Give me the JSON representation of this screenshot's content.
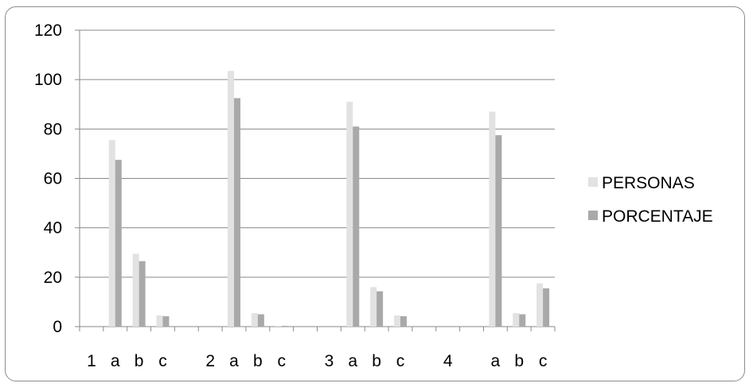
{
  "chart_data": {
    "type": "bar",
    "categories": [
      "1",
      "a",
      "b",
      "c",
      "",
      "2",
      "a",
      "b",
      "c",
      "",
      "3",
      "a",
      "b",
      "c",
      "",
      "4",
      "",
      "a",
      "b",
      "c"
    ],
    "series": [
      {
        "name": "PERSONAS",
        "color": "#e2e2e2",
        "values": [
          0,
          75.5,
          29.5,
          4.5,
          0,
          0,
          103.5,
          5.5,
          0.3,
          0,
          0,
          91,
          16,
          4.5,
          0,
          0,
          0,
          87,
          5.5,
          17.5
        ]
      },
      {
        "name": "PORCENTAJE",
        "color": "#a9a9a9",
        "values": [
          0,
          67.5,
          26.5,
          4.2,
          0,
          0,
          92.5,
          5,
          0.3,
          0,
          0,
          81,
          14.3,
          4.2,
          0,
          0,
          0,
          77.5,
          5,
          15.5
        ]
      }
    ],
    "ylim": [
      0,
      120
    ],
    "yticks": [
      "0",
      "20",
      "40",
      "60",
      "80",
      "100",
      "120"
    ],
    "grid": true,
    "legend_position": "right"
  }
}
